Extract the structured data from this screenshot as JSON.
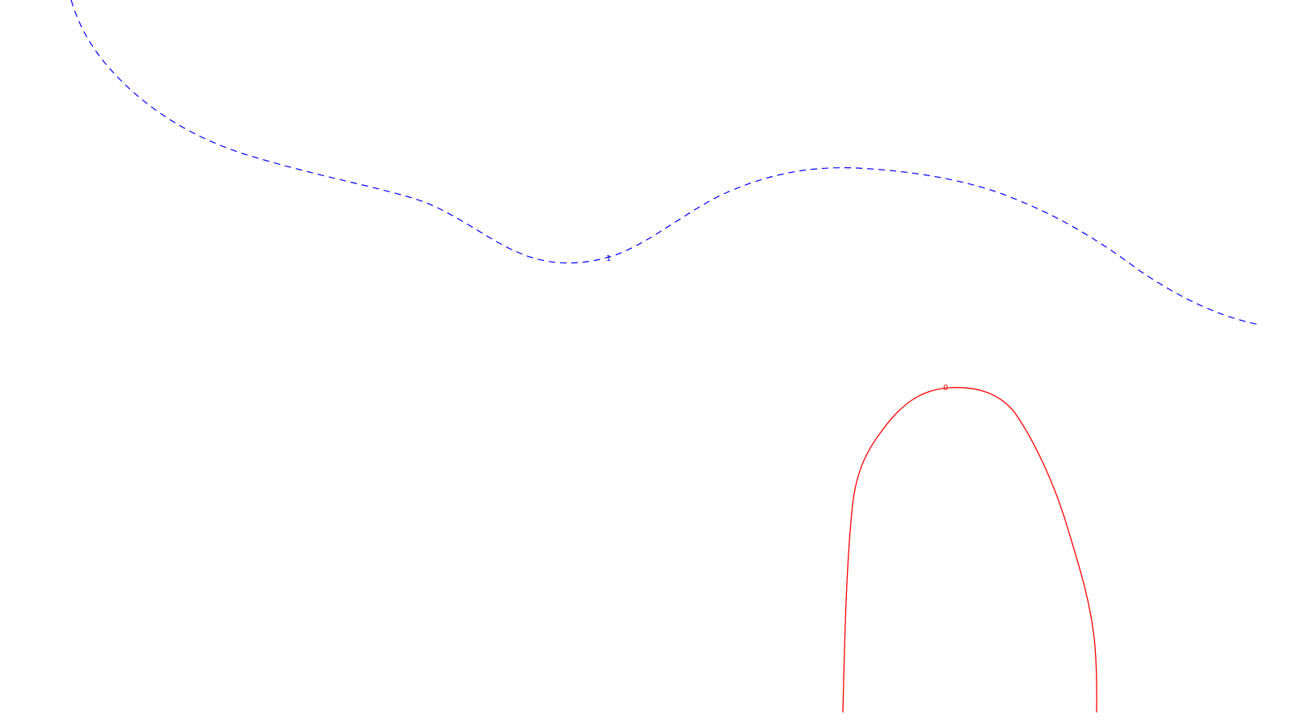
{
  "chart_data": {
    "type": "contour",
    "title": "",
    "xlabel": "",
    "ylabel": "",
    "grid": false,
    "legend": "none",
    "series": [
      {
        "level_label": "1",
        "color": "#0000ff",
        "style": "dashed"
      },
      {
        "level_label": "0",
        "color": "#ff0000",
        "style": "solid"
      }
    ]
  }
}
